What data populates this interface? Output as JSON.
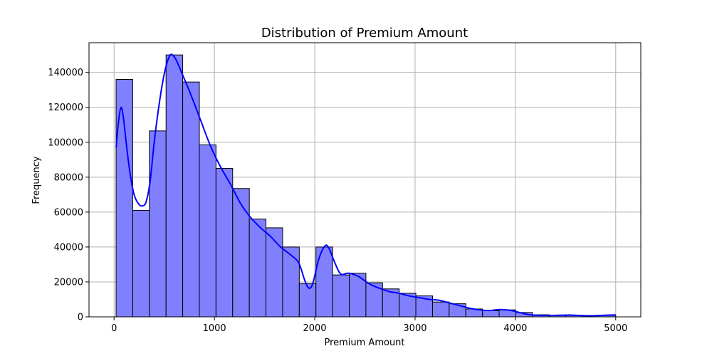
{
  "chart_data": {
    "type": "bar",
    "title": "Distribution of Premium Amount",
    "xlabel": "Premium Amount",
    "ylabel": "Frequency",
    "xlim": [
      -250,
      5250
    ],
    "ylim": [
      0,
      157000
    ],
    "x_ticks": [
      0,
      1000,
      2000,
      3000,
      4000,
      5000
    ],
    "x_tick_labels": [
      "0",
      "1000",
      "2000",
      "3000",
      "4000",
      "5000"
    ],
    "y_ticks": [
      0,
      20000,
      40000,
      60000,
      80000,
      100000,
      120000,
      140000
    ],
    "y_tick_labels": [
      "0",
      "20000",
      "40000",
      "60000",
      "80000",
      "100000",
      "120000",
      "140000"
    ],
    "grid": true,
    "bins": [
      {
        "x0": 20,
        "x1": 186,
        "value": 136000
      },
      {
        "x0": 186,
        "x1": 352,
        "value": 61000
      },
      {
        "x0": 352,
        "x1": 518,
        "value": 106500
      },
      {
        "x0": 518,
        "x1": 684,
        "value": 150000
      },
      {
        "x0": 684,
        "x1": 850,
        "value": 134500
      },
      {
        "x0": 850,
        "x1": 1016,
        "value": 98500
      },
      {
        "x0": 1016,
        "x1": 1182,
        "value": 85000
      },
      {
        "x0": 1182,
        "x1": 1348,
        "value": 73500
      },
      {
        "x0": 1348,
        "x1": 1514,
        "value": 56000
      },
      {
        "x0": 1514,
        "x1": 1680,
        "value": 51000
      },
      {
        "x0": 1680,
        "x1": 1846,
        "value": 40000
      },
      {
        "x0": 1846,
        "x1": 2012,
        "value": 19000
      },
      {
        "x0": 2012,
        "x1": 2178,
        "value": 40000
      },
      {
        "x0": 2178,
        "x1": 2344,
        "value": 24000
      },
      {
        "x0": 2344,
        "x1": 2510,
        "value": 25000
      },
      {
        "x0": 2510,
        "x1": 2676,
        "value": 19500
      },
      {
        "x0": 2676,
        "x1": 2842,
        "value": 16000
      },
      {
        "x0": 2842,
        "x1": 3008,
        "value": 13500
      },
      {
        "x0": 3008,
        "x1": 3174,
        "value": 12000
      },
      {
        "x0": 3174,
        "x1": 3340,
        "value": 8500
      },
      {
        "x0": 3340,
        "x1": 3506,
        "value": 7500
      },
      {
        "x0": 3506,
        "x1": 3672,
        "value": 4500
      },
      {
        "x0": 3672,
        "x1": 3838,
        "value": 3500
      },
      {
        "x0": 3838,
        "x1": 4004,
        "value": 4000
      },
      {
        "x0": 4004,
        "x1": 4170,
        "value": 2500
      },
      {
        "x0": 4170,
        "x1": 4336,
        "value": 1200
      },
      {
        "x0": 4336,
        "x1": 4502,
        "value": 1000
      },
      {
        "x0": 4502,
        "x1": 4668,
        "value": 800
      },
      {
        "x0": 4668,
        "x1": 4834,
        "value": 700
      },
      {
        "x0": 4834,
        "x1": 5000,
        "value": 900
      }
    ],
    "kde": {
      "x": [
        20,
        45,
        70,
        95,
        130,
        165,
        200,
        240,
        280,
        320,
        360,
        400,
        440,
        480,
        520,
        560,
        590,
        620,
        680,
        760,
        860,
        960,
        1060,
        1160,
        1260,
        1360,
        1460,
        1560,
        1660,
        1760,
        1840,
        1900,
        1940,
        1980,
        2040,
        2100,
        2140,
        2200,
        2260,
        2340,
        2440,
        2540,
        2640,
        2740,
        2840,
        2940,
        3040,
        3140,
        3240,
        3340,
        3440,
        3540,
        3640,
        3740,
        3840,
        3940,
        4040,
        4140,
        4240,
        4340,
        4440,
        4540,
        4640,
        4740,
        4840,
        4940,
        5000
      ],
      "y": [
        97000,
        112000,
        120000,
        113000,
        95000,
        80000,
        70000,
        65000,
        63500,
        66000,
        78000,
        100000,
        118000,
        133000,
        144000,
        150000,
        149500,
        147000,
        139000,
        128000,
        113000,
        98000,
        86000,
        76000,
        65000,
        57000,
        51000,
        46000,
        40000,
        35500,
        31000,
        21000,
        16500,
        19000,
        33000,
        40500,
        39500,
        31000,
        24500,
        25000,
        23000,
        19000,
        16500,
        14500,
        13500,
        12000,
        11000,
        10000,
        9500,
        8000,
        6500,
        5000,
        4000,
        3600,
        4200,
        3800,
        2500,
        1200,
        900,
        800,
        900,
        1000,
        800,
        600,
        800,
        1000,
        1100
      ]
    },
    "colors": {
      "bar_fill": "#8080ff",
      "bar_edge": "#000000",
      "kde_line": "#0000ff",
      "grid": "#b0b0b0"
    }
  }
}
